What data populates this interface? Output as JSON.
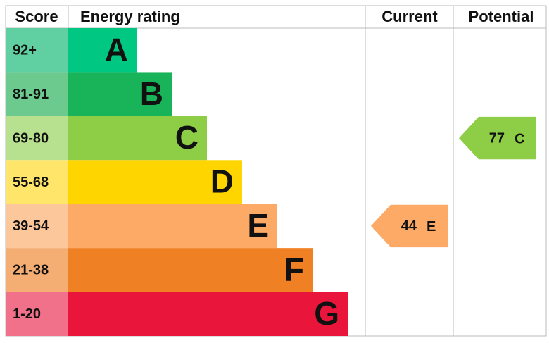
{
  "header": {
    "score": "Score",
    "rating": "Energy rating",
    "current": "Current",
    "potential": "Potential"
  },
  "bands": [
    {
      "score": "92+",
      "letter": "A",
      "color": "#00c781",
      "score_color": "#60cfa2"
    },
    {
      "score": "81-91",
      "letter": "B",
      "color": "#19b459",
      "score_color": "#6dca8f"
    },
    {
      "score": "69-80",
      "letter": "C",
      "color": "#8dce46",
      "score_color": "#b8e18f"
    },
    {
      "score": "55-68",
      "letter": "D",
      "color": "#ffd500",
      "score_color": "#ffe56a"
    },
    {
      "score": "39-54",
      "letter": "E",
      "color": "#fcaa65",
      "score_color": "#fdc79c"
    },
    {
      "score": "21-38",
      "letter": "F",
      "color": "#ef8023",
      "score_color": "#f4ad73"
    },
    {
      "score": "1-20",
      "letter": "G",
      "color": "#e9153b",
      "score_color": "#f07189"
    }
  ],
  "current": {
    "value": "44",
    "letter": "E"
  },
  "potential": {
    "value": "77",
    "letter": "C"
  }
}
